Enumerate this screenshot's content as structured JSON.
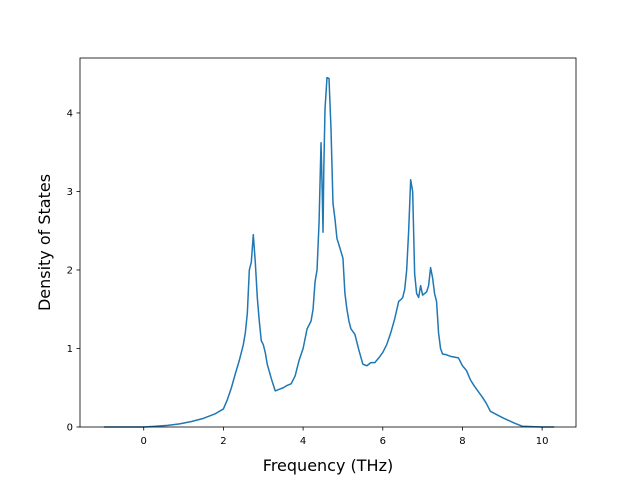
{
  "chart_data": {
    "type": "line",
    "title": "",
    "xlabel": "Frequency (THz)",
    "ylabel": "Density of States",
    "xlim": [
      -1.6,
      10.85
    ],
    "ylim": [
      0,
      4.7
    ],
    "x_ticks": [
      0,
      2,
      4,
      6,
      8,
      10
    ],
    "y_ticks": [
      0,
      1,
      2,
      3,
      4
    ],
    "x_tick_labels": [
      "0",
      "2",
      "4",
      "6",
      "8",
      "10"
    ],
    "y_tick_labels": [
      "0",
      "1",
      "2",
      "3",
      "4"
    ],
    "grid": false,
    "line_color": "#1f77b4",
    "series": [
      {
        "x": [
          -1.0,
          -0.5,
          0.0,
          0.3,
          0.6,
          0.9,
          1.2,
          1.5,
          1.8,
          2.0,
          2.1,
          2.2,
          2.3,
          2.4,
          2.5,
          2.55,
          2.6,
          2.65,
          2.7,
          2.75,
          2.8,
          2.85,
          2.9,
          2.95,
          3.0,
          3.05,
          3.1,
          3.2,
          3.3,
          3.4,
          3.5,
          3.6,
          3.65,
          3.7,
          3.8,
          3.85,
          3.9,
          4.0,
          4.1,
          4.2,
          4.25,
          4.3,
          4.35,
          4.4,
          4.45,
          4.48,
          4.5,
          4.52,
          4.55,
          4.6,
          4.65,
          4.7,
          4.75,
          4.8,
          4.85,
          4.9,
          5.0,
          5.05,
          5.1,
          5.15,
          5.2,
          5.3,
          5.4,
          5.5,
          5.6,
          5.7,
          5.8,
          5.9,
          6.0,
          6.1,
          6.2,
          6.3,
          6.4,
          6.45,
          6.5,
          6.55,
          6.6,
          6.65,
          6.7,
          6.75,
          6.8,
          6.85,
          6.9,
          6.95,
          7.0,
          7.1,
          7.15,
          7.2,
          7.25,
          7.3,
          7.35,
          7.4,
          7.45,
          7.5,
          7.6,
          7.7,
          7.8,
          7.9,
          8.0,
          8.1,
          8.2,
          8.3,
          8.4,
          8.5,
          8.6,
          8.7,
          9.0,
          9.3,
          9.5,
          10.0,
          10.3
        ],
        "y": [
          0,
          0,
          0,
          0.01,
          0.02,
          0.04,
          0.07,
          0.11,
          0.17,
          0.23,
          0.35,
          0.5,
          0.68,
          0.85,
          1.05,
          1.2,
          1.45,
          2.0,
          2.1,
          2.45,
          2.1,
          1.65,
          1.35,
          1.1,
          1.05,
          0.95,
          0.8,
          0.62,
          0.46,
          0.48,
          0.5,
          0.53,
          0.54,
          0.55,
          0.65,
          0.75,
          0.85,
          1.0,
          1.25,
          1.35,
          1.5,
          1.85,
          2.0,
          2.6,
          3.62,
          3.0,
          2.48,
          3.3,
          4.05,
          4.45,
          4.44,
          3.8,
          2.85,
          2.65,
          2.4,
          2.32,
          2.15,
          1.7,
          1.5,
          1.35,
          1.25,
          1.18,
          0.98,
          0.8,
          0.78,
          0.82,
          0.82,
          0.88,
          0.95,
          1.05,
          1.2,
          1.38,
          1.6,
          1.62,
          1.65,
          1.75,
          2.0,
          2.5,
          3.15,
          3.0,
          1.95,
          1.7,
          1.65,
          1.8,
          1.68,
          1.72,
          1.8,
          2.03,
          1.9,
          1.7,
          1.6,
          1.2,
          1.0,
          0.93,
          0.92,
          0.9,
          0.89,
          0.88,
          0.78,
          0.72,
          0.6,
          0.52,
          0.45,
          0.38,
          0.3,
          0.2,
          0.12,
          0.05,
          0.01,
          0,
          0
        ]
      }
    ]
  }
}
